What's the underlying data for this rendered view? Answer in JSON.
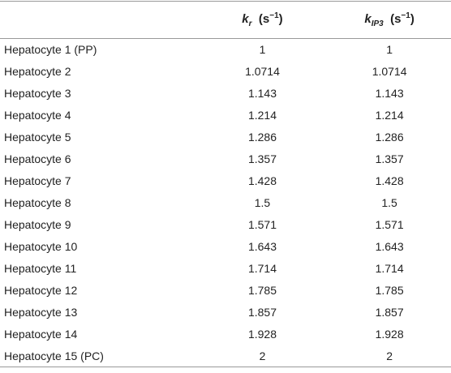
{
  "table": {
    "columns": [
      null,
      {
        "base": "k",
        "sub": "r",
        "unit_open": "(s",
        "unit_sup": "−1",
        "unit_close": ")"
      },
      {
        "base": "k",
        "sub": "IP3",
        "unit_open": "(s",
        "unit_sup": "−1",
        "unit_close": ")"
      }
    ],
    "rows": [
      [
        "Hepatocyte 1 (PP)",
        "1",
        "1"
      ],
      [
        "Hepatocyte 2",
        "1.0714",
        "1.0714"
      ],
      [
        "Hepatocyte 3",
        "1.143",
        "1.143"
      ],
      [
        "Hepatocyte 4",
        "1.214",
        "1.214"
      ],
      [
        "Hepatocyte 5",
        "1.286",
        "1.286"
      ],
      [
        "Hepatocyte 6",
        "1.357",
        "1.357"
      ],
      [
        "Hepatocyte 7",
        "1.428",
        "1.428"
      ],
      [
        "Hepatocyte 8",
        "1.5",
        "1.5"
      ],
      [
        "Hepatocyte 9",
        "1.571",
        "1.571"
      ],
      [
        "Hepatocyte 10",
        "1.643",
        "1.643"
      ],
      [
        "Hepatocyte 11",
        "1.714",
        "1.714"
      ],
      [
        "Hepatocyte 12",
        "1.785",
        "1.785"
      ],
      [
        "Hepatocyte 13",
        "1.857",
        "1.857"
      ],
      [
        "Hepatocyte 14",
        "1.928",
        "1.928"
      ],
      [
        "Hepatocyte 15 (PC)",
        "2",
        "2"
      ]
    ]
  }
}
